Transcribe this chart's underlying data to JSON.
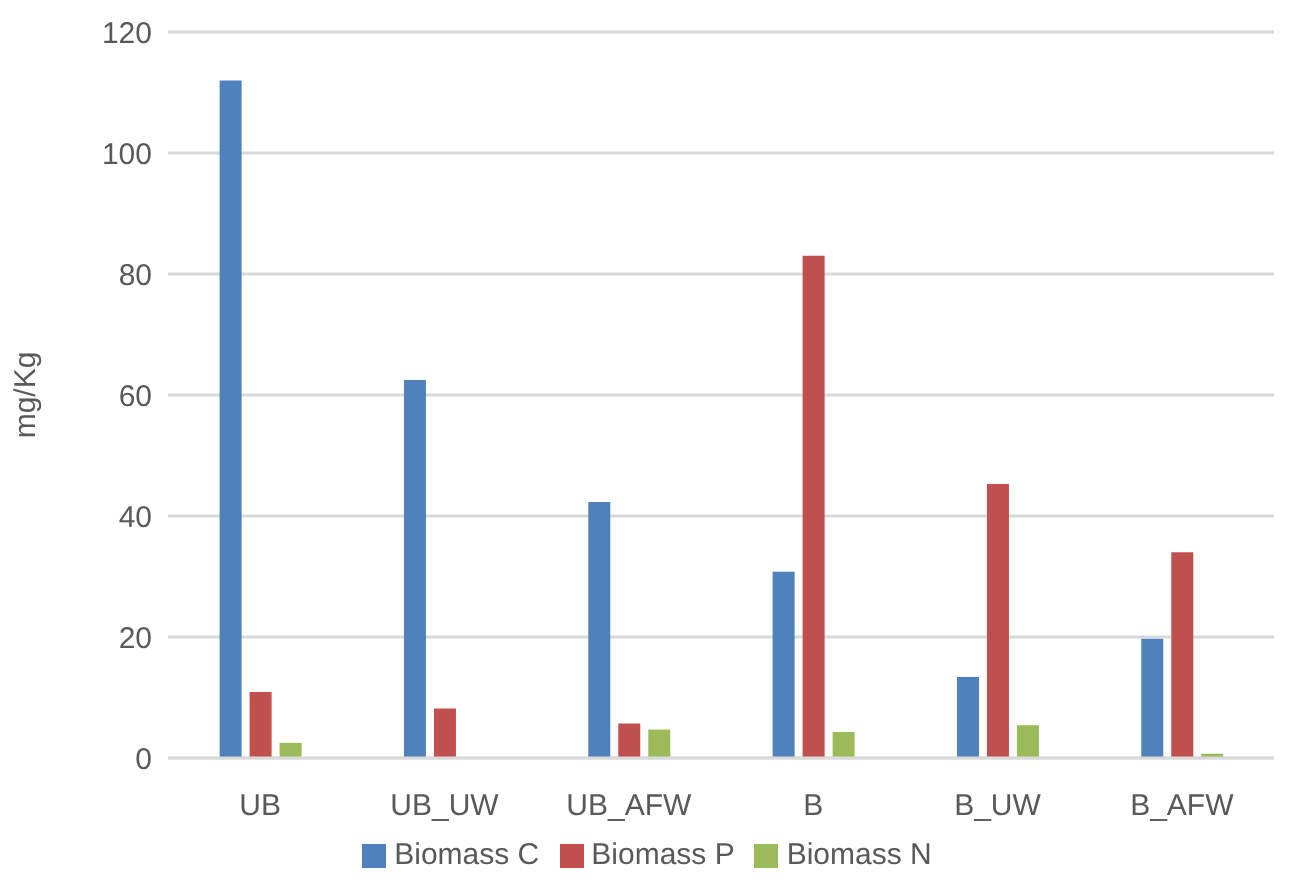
{
  "chart_data": {
    "type": "bar",
    "ylabel": "mg/Kg",
    "categories": [
      "UB",
      "UB_UW",
      "UB_AFW",
      "B",
      "B_UW",
      "B_AFW"
    ],
    "series": [
      {
        "name": "Biomass C",
        "color": "#4f81bd",
        "values": [
          112,
          62.5,
          42.3,
          30.8,
          13.4,
          19.7
        ]
      },
      {
        "name": "Biomass P",
        "color": "#c0504d",
        "values": [
          10.9,
          8.2,
          5.7,
          83,
          45.3,
          34
        ]
      },
      {
        "name": "Biomass N",
        "color": "#9bbb59",
        "values": [
          2.5,
          0,
          4.7,
          4.3,
          5.4,
          0.7
        ]
      }
    ],
    "ylim": [
      0,
      120
    ],
    "yticks": [
      0,
      20,
      40,
      60,
      80,
      100,
      120
    ],
    "grid": "y",
    "legend": "bottom"
  }
}
